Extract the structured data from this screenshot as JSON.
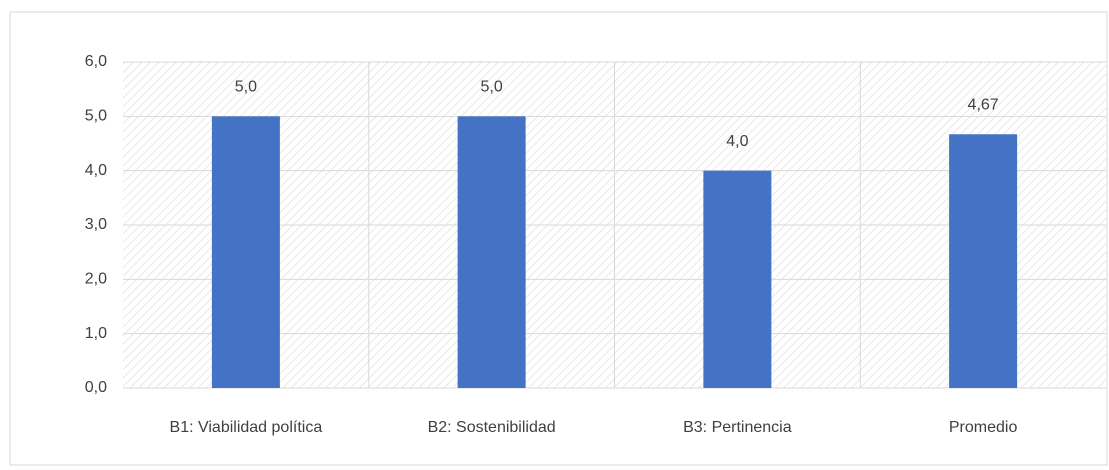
{
  "chart_data": {
    "type": "bar",
    "categories": [
      "B1: Viabilidad política",
      "B2: Sostenibilidad",
      "B3: Pertinencia",
      "Promedio"
    ],
    "values": [
      5.0,
      5.0,
      4.0,
      4.67
    ],
    "value_labels": [
      "5,0",
      "5,0",
      "4,0",
      "4,67"
    ],
    "color": "#4472c4",
    "ylim": [
      0,
      6
    ],
    "yticks": [
      {
        "value": 0,
        "label": "0,0"
      },
      {
        "value": 1,
        "label": "1,0"
      },
      {
        "value": 2,
        "label": "2,0"
      },
      {
        "value": 3,
        "label": "3,0"
      },
      {
        "value": 4,
        "label": "4,0"
      },
      {
        "value": 5,
        "label": "5,0"
      },
      {
        "value": 6,
        "label": "6,0"
      }
    ],
    "grid": true
  }
}
